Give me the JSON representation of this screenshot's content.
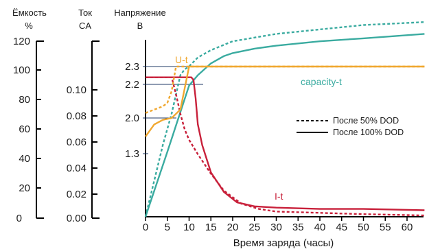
{
  "chart_data": {
    "type": "line",
    "xlabel": "Время заряда (часы)",
    "xlim": [
      0,
      64
    ],
    "x_ticks": [
      "0",
      "5",
      "10",
      "15",
      "20",
      "25",
      "30",
      "35",
      "40",
      "45",
      "50",
      "55",
      "60"
    ],
    "axes": {
      "capacity": {
        "header": [
          "Ёмкость",
          "%"
        ],
        "ylim": [
          0,
          120
        ],
        "ticks": [
          "0",
          "20",
          "40",
          "60",
          "80",
          "100",
          "120"
        ]
      },
      "current": {
        "header": [
          "Ток",
          "CA"
        ],
        "ylim": [
          0,
          0.12
        ],
        "ticks": [
          "0.00",
          "0.02",
          "0.04",
          "0.06",
          "0.08",
          "0.10"
        ]
      },
      "voltage": {
        "header": [
          "Напряжение",
          "В"
        ],
        "ticks": [
          "1.3",
          "2.0",
          "2.2",
          "2.3"
        ]
      }
    },
    "series_labels": {
      "voltage": "U-t",
      "capacity": "capacity-t",
      "current": "I-t"
    },
    "colors": {
      "voltage": "#f0a830",
      "capacity": "#3aaba0",
      "current": "#c8203a",
      "ref_lines": "#1f3a66"
    },
    "legend": {
      "position": "right",
      "entries": [
        {
          "style": "dashed",
          "label": "После 50% DOD"
        },
        {
          "style": "solid",
          "label": "После 100% DOD"
        }
      ]
    },
    "series": [
      {
        "key": "capacity",
        "condition": "100% DOD",
        "axis": "capacity",
        "x": [
          0,
          5,
          10,
          12,
          15,
          18,
          20,
          25,
          30,
          40,
          50,
          64
        ],
        "y": [
          0,
          44,
          89,
          96,
          104,
          109,
          111,
          114,
          116,
          119,
          121,
          124
        ]
      },
      {
        "key": "capacity",
        "condition": "50% DOD",
        "axis": "capacity",
        "x": [
          0,
          4,
          6,
          8,
          9,
          10,
          12,
          15,
          20,
          30,
          40,
          50,
          64
        ],
        "y": [
          0,
          49,
          70,
          96,
          100,
          102,
          108,
          113,
          119,
          124,
          127,
          130,
          132
        ]
      },
      {
        "key": "current",
        "condition": "100% DOD",
        "axis": "current",
        "x": [
          0,
          6,
          10.5,
          11,
          11.5,
          12,
          13,
          15,
          18,
          21,
          25,
          30,
          40,
          50,
          64
        ],
        "y": [
          0.107,
          0.107,
          0.107,
          0.105,
          0.091,
          0.071,
          0.055,
          0.034,
          0.019,
          0.011,
          0.008,
          0.007,
          0.006,
          0.006,
          0.005
        ]
      },
      {
        "key": "current",
        "condition": "50% DOD",
        "axis": "current",
        "x": [
          0,
          6,
          7,
          8,
          9,
          10,
          12,
          15,
          18,
          22,
          26,
          30,
          40,
          50,
          64
        ],
        "y": [
          0.107,
          0.107,
          0.094,
          0.079,
          0.067,
          0.059,
          0.048,
          0.033,
          0.02,
          0.01,
          0.006,
          0.004,
          0.003,
          0.002,
          0.001
        ]
      }
    ],
    "voltage_series": [
      {
        "condition": "100% DOD",
        "axis": "voltage",
        "x": [
          0,
          2,
          4,
          6,
          8,
          10,
          11,
          12,
          20,
          40,
          64
        ],
        "v": [
          1.6,
          1.86,
          1.96,
          2.0,
          2.05,
          2.3,
          2.32,
          2.32,
          2.32,
          2.32,
          2.32
        ]
      },
      {
        "condition": "50% DOD",
        "axis": "voltage",
        "x": [
          0,
          2,
          4,
          5,
          6,
          7,
          8,
          64
        ],
        "v": [
          2.03,
          2.05,
          2.07,
          2.09,
          2.16,
          2.3,
          2.32,
          2.32
        ]
      }
    ]
  }
}
